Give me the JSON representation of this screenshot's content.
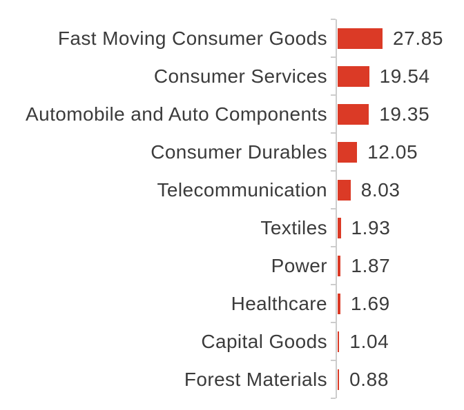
{
  "chart_data": {
    "type": "bar",
    "orientation": "horizontal",
    "title": "",
    "categories": [
      "Fast Moving Consumer Goods",
      "Consumer Services",
      "Automobile and Auto Components",
      "Consumer Durables",
      "Telecommunication",
      "Textiles",
      "Power",
      "Healthcare",
      "Capital Goods",
      "Forest Materials"
    ],
    "values": [
      27.85,
      19.54,
      19.35,
      12.05,
      8.03,
      1.93,
      1.87,
      1.69,
      1.04,
      0.88
    ],
    "value_labels": [
      "27.85",
      "19.54",
      "19.35",
      "12.05",
      "8.03",
      "1.93",
      "1.87",
      "1.69",
      "1.04",
      "0.88"
    ],
    "xlim": [
      0,
      27.85
    ],
    "grid": false,
    "legend": false,
    "data_labels_position": "right-of-bar",
    "bar_color": "#db3a26",
    "axis_line_color": "#cccccc",
    "tick_color": "#cccccc",
    "label_color": "#3b3b3b",
    "value_color": "#3b3b3b",
    "background_color": "#ffffff"
  }
}
